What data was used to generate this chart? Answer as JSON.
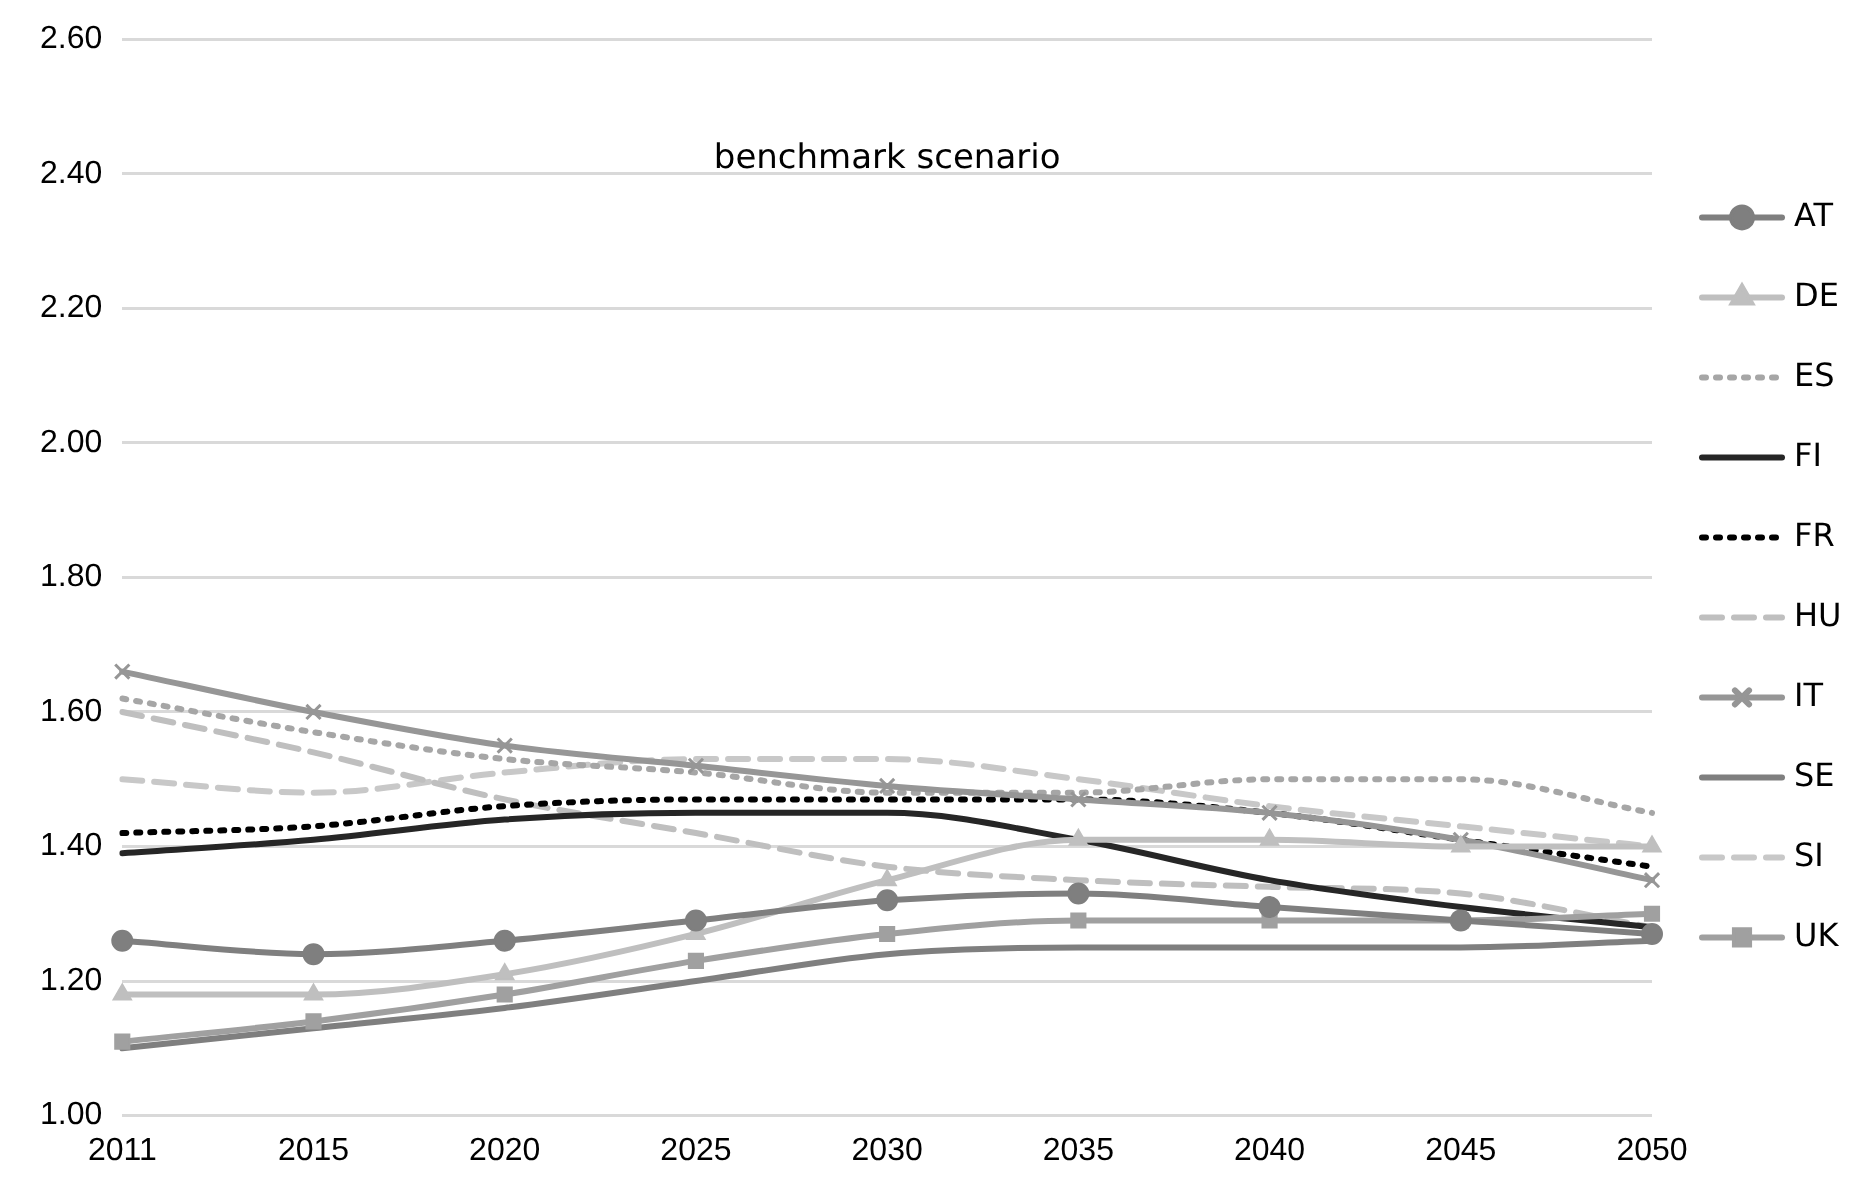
{
  "chart_data": {
    "type": "line",
    "title": "benchmark scenario",
    "categories": [
      "2011",
      "2015",
      "2020",
      "2025",
      "2030",
      "2035",
      "2040",
      "2045",
      "2050"
    ],
    "ylim": [
      1.0,
      2.6
    ],
    "yticks": [
      {
        "value": 1.0,
        "label": "1.00"
      },
      {
        "value": 1.2,
        "label": "1.20"
      },
      {
        "value": 1.4,
        "label": "1.40"
      },
      {
        "value": 1.6,
        "label": "1.60"
      },
      {
        "value": 1.8,
        "label": "1.80"
      },
      {
        "value": 2.0,
        "label": "2.00"
      },
      {
        "value": 2.2,
        "label": "2.20"
      },
      {
        "value": 2.4,
        "label": "2.40"
      },
      {
        "value": 2.6,
        "label": "2.60"
      }
    ],
    "grid": "y",
    "legend": "right",
    "series": [
      {
        "name": "AT",
        "color": "#7f7f7f",
        "marker": "circle",
        "line_style": "solid",
        "values": [
          1.26,
          1.24,
          1.26,
          1.29,
          1.32,
          1.33,
          1.31,
          1.29,
          1.27
        ]
      },
      {
        "name": "DE",
        "color": "#bfbfbf",
        "marker": "triangle",
        "line_style": "solid",
        "values": [
          1.18,
          1.18,
          1.21,
          1.27,
          1.35,
          1.41,
          1.41,
          1.4,
          1.4
        ]
      },
      {
        "name": "ES",
        "color": "#a6a6a6",
        "marker": "none",
        "line_style": "dotted",
        "values": [
          1.62,
          1.57,
          1.53,
          1.51,
          1.48,
          1.48,
          1.5,
          1.5,
          1.45
        ]
      },
      {
        "name": "FI",
        "color": "#262626",
        "marker": "none",
        "line_style": "solid",
        "values": [
          1.39,
          1.41,
          1.44,
          1.45,
          1.45,
          1.41,
          1.35,
          1.31,
          1.28
        ]
      },
      {
        "name": "FR",
        "color": "#000000",
        "marker": "none",
        "line_style": "dotted",
        "values": [
          1.42,
          1.43,
          1.46,
          1.47,
          1.47,
          1.47,
          1.45,
          1.41,
          1.37
        ]
      },
      {
        "name": "HU",
        "color": "#bfbfbf",
        "marker": "none",
        "line_style": "dashed",
        "values": [
          1.6,
          1.54,
          1.47,
          1.42,
          1.37,
          1.35,
          1.34,
          1.33,
          1.28
        ]
      },
      {
        "name": "IT",
        "color": "#969696",
        "marker": "cross",
        "line_style": "solid",
        "values": [
          1.66,
          1.6,
          1.55,
          1.52,
          1.49,
          1.47,
          1.45,
          1.41,
          1.35
        ]
      },
      {
        "name": "SE",
        "color": "#7f7f7f",
        "marker": "none",
        "line_style": "solid",
        "values": [
          1.1,
          1.13,
          1.16,
          1.2,
          1.24,
          1.25,
          1.25,
          1.25,
          1.26
        ]
      },
      {
        "name": "SI",
        "color": "#c8c8c8",
        "marker": "none",
        "line_style": "dashed",
        "values": [
          1.5,
          1.48,
          1.51,
          1.53,
          1.53,
          1.5,
          1.46,
          1.43,
          1.4
        ]
      },
      {
        "name": "UK",
        "color": "#a0a0a0",
        "marker": "square",
        "line_style": "solid",
        "values": [
          1.11,
          1.14,
          1.18,
          1.23,
          1.27,
          1.29,
          1.29,
          1.29,
          1.3
        ]
      }
    ]
  }
}
